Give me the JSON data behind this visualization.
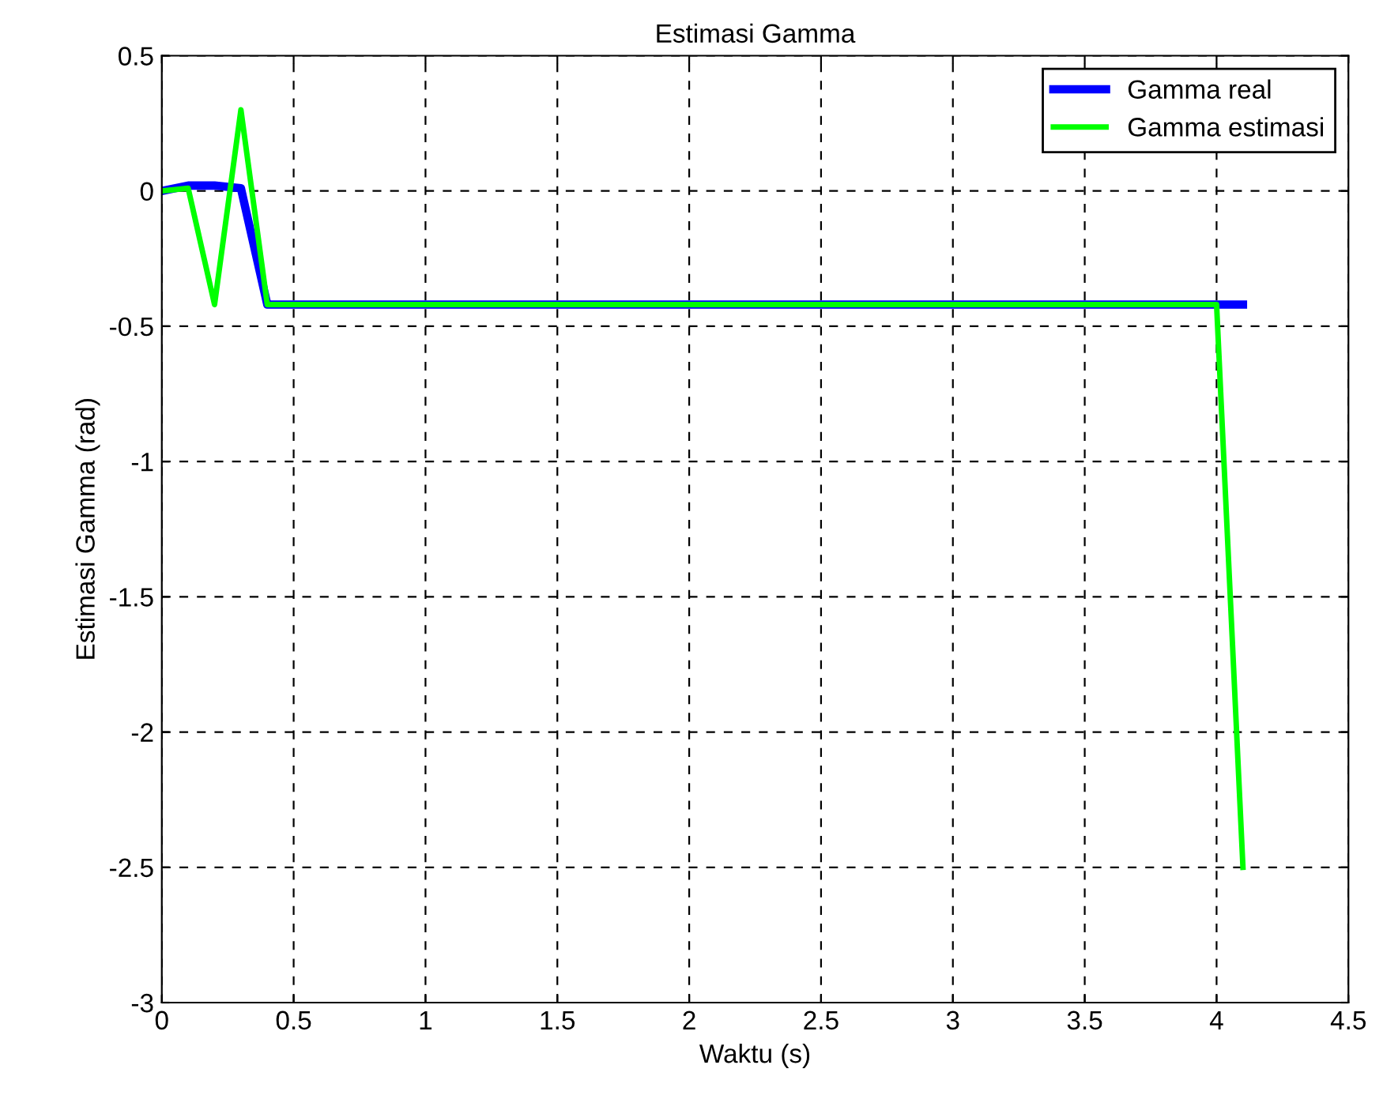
{
  "chart_data": {
    "type": "line",
    "title": "Estimasi Gamma",
    "xlabel": "Waktu (s)",
    "ylabel": "Estimasi Gamma (rad)",
    "series": [
      {
        "name": "Gamma real",
        "color": "#0000ff",
        "x": [
          0,
          0.1,
          0.2,
          0.3,
          0.4,
          4.1
        ],
        "values": [
          0,
          0.02,
          0.02,
          0.01,
          -0.42,
          -0.42
        ]
      },
      {
        "name": "Gamma estimasi",
        "color": "#00ff00",
        "x": [
          0,
          0.1,
          0.2,
          0.3,
          0.4,
          4.0,
          4.1
        ],
        "values": [
          0,
          0.01,
          -0.42,
          0.3,
          -0.42,
          -0.42,
          -2.5
        ]
      }
    ],
    "xlim": [
      0,
      4.5
    ],
    "xticks": [
      0,
      0.5,
      1,
      1.5,
      2,
      2.5,
      3,
      3.5,
      4,
      4.5
    ],
    "ylim": [
      -3,
      0.5
    ],
    "yticks": [
      -3,
      -2.5,
      -2,
      -1.5,
      -1,
      -0.5,
      0,
      0.5
    ],
    "grid": true,
    "legend": "top right",
    "line_style": "solid",
    "marker": "none"
  }
}
